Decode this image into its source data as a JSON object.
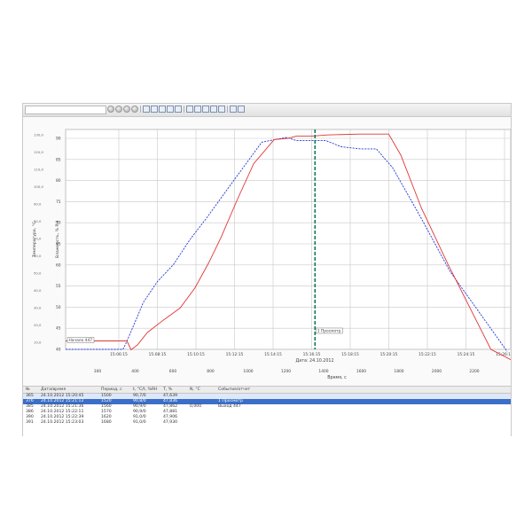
{
  "toolbar": {
    "combo_value": "",
    "icons": [
      "back-icon",
      "forward-icon",
      "stop-icon",
      "refresh-icon",
      "page-icon",
      "tool-icon",
      "crop-icon",
      "crosshair-icon",
      "grid-icon",
      "chart-icon",
      "zoom-in-icon",
      "zoom-out-icon",
      "zoom-fit-icon",
      "pan-icon",
      "scissors-icon",
      "undo-icon"
    ]
  },
  "chart_data": {
    "type": "line",
    "left_axis": {
      "label": "Температура, °C",
      "ticks": [
        "40",
        "45",
        "50",
        "55",
        "60",
        "65",
        "70",
        "75",
        "80",
        "85",
        "90"
      ]
    },
    "right_axis": {
      "label": "Влажность, % RH",
      "ticks": [
        "10,0",
        "20,0",
        "30,0",
        "40,0",
        "50,0",
        "60,0",
        "70,0",
        "80,0",
        "90,0",
        "100,0",
        "110,0",
        "120,0",
        "130,0"
      ]
    },
    "x_time_ticks": [
      "15:06:15",
      "15:08:15",
      "15:10:15",
      "15:12:15",
      "15:14:15",
      "15:16:15",
      "15:18:15",
      "15:20:15",
      "15:22:15",
      "15:24:15",
      "15:26:15",
      "15:28:15"
    ],
    "x_axis_label": "Дата: 24.10.2012",
    "x_bottom_ticks": [
      "300",
      "400",
      "600",
      "800",
      "1000",
      "1200",
      "1400",
      "1600",
      "1800",
      "2000",
      "2200",
      "2400"
    ],
    "x_bottom_label": "Время, с",
    "grid": true,
    "series": [
      {
        "color": "#2a3fd6",
        "x": [
          0,
          70,
          73,
          75,
          82,
          95,
          112,
          132,
          152,
          172,
          200,
          240,
          270,
          282,
          300,
          318,
          337,
          360,
          380,
          400,
          435,
          470,
          540
        ],
        "y": [
          40.0,
          40.0,
          41.1,
          42.0,
          45.1,
          51.1,
          56.0,
          60.1,
          66.0,
          71.0,
          78.5,
          89.1,
          90.2,
          89.5,
          89.5,
          89.5,
          88.0,
          87.5,
          87.5,
          83.0,
          71.0,
          58.5,
          39.5
        ]
      },
      {
        "color": "#e03535",
        "x": [
          0,
          75,
          80,
          88,
          100,
          120,
          140,
          158,
          175,
          190,
          210,
          230,
          255,
          272,
          282,
          300,
          320,
          360,
          395,
          410,
          435,
          468,
          520,
          545
        ],
        "y": [
          42.0,
          42.0,
          39.9,
          41.1,
          44.0,
          47.0,
          49.8,
          54.5,
          60.5,
          66.5,
          75.5,
          84.0,
          89.7,
          90.0,
          90.5,
          90.5,
          90.8,
          91.0,
          91.0,
          86.0,
          73.5,
          60.0,
          40.0,
          37.5
        ]
      }
    ],
    "markers": [
      {
        "x": 305,
        "label": "1 Просмотр"
      }
    ],
    "annotations": [
      {
        "x": 70,
        "y": 42.2,
        "label": "Начало 447"
      }
    ]
  },
  "table": {
    "columns": [
      "№",
      "Дата/время",
      "Период, с",
      "t, °C/t, %RH",
      "Т, %",
      "N, °C",
      "Событие/отчет"
    ],
    "rows": [
      [
        "365",
        "24.10.2012 15:20:45",
        "1500",
        "90,7/0",
        "47,639",
        "",
        ""
      ],
      [
        "376",
        "24.10.2012 15:21:12",
        "1520",
        "90,8/0",
        "47,836",
        "",
        "1 Просмотр"
      ],
      [
        "385",
        "24.10.2012 15:21:36",
        "1560",
        "90,9/0",
        "47,862",
        "0,000",
        "Выход 447"
      ],
      [
        "386",
        "24.10.2012 15:22:11",
        "1570",
        "90,9/0",
        "47,881",
        "",
        ""
      ],
      [
        "390",
        "24.10.2012 15:22:39",
        "1620",
        "91,0/0",
        "47,906",
        "",
        ""
      ],
      [
        "391",
        "24.10.2012 15:23:03",
        "1680",
        "91,0/0",
        "47,930",
        "",
        ""
      ]
    ],
    "selected_row": 1
  }
}
